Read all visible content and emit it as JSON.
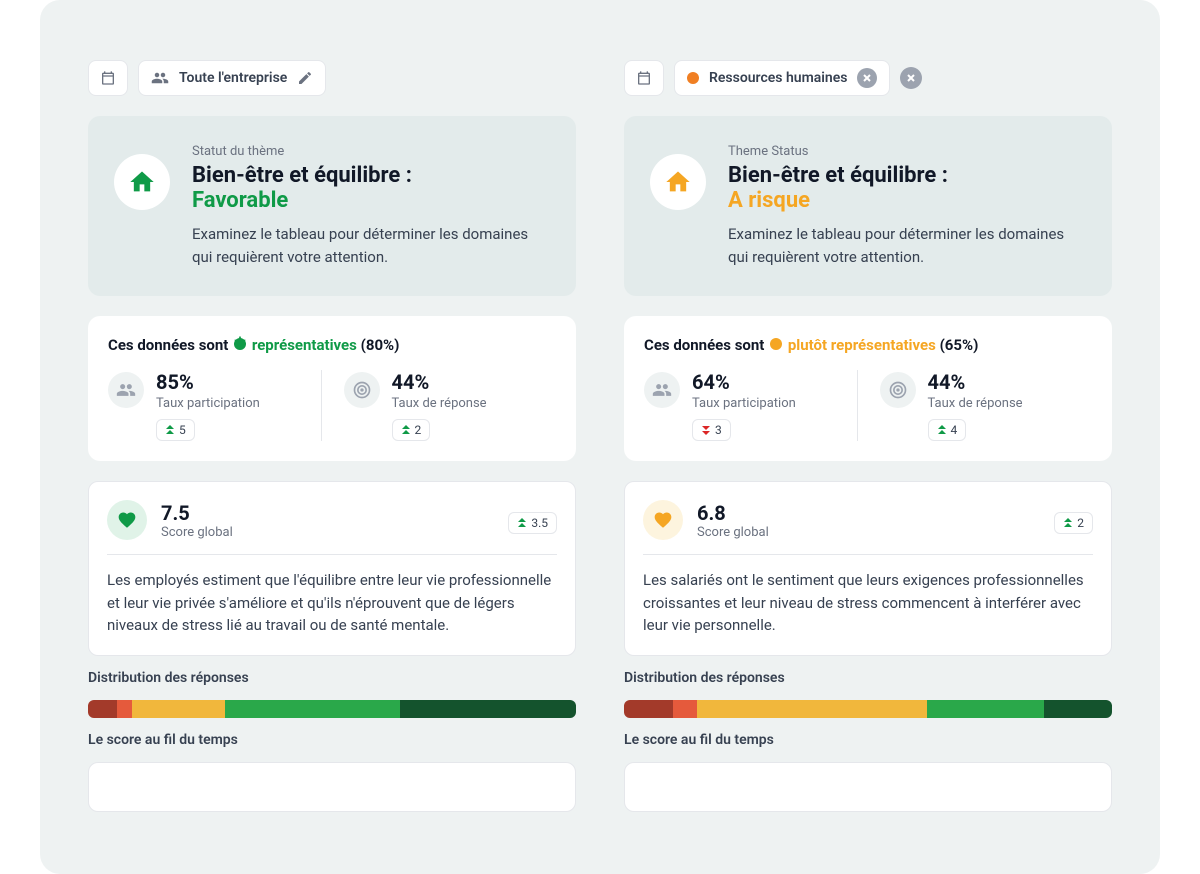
{
  "colors": {
    "green": "#0f9a47",
    "greenLight": "#e0f3e8",
    "amber": "#f5a623",
    "amberLight": "#fdf4de",
    "orange": "#f07f23",
    "gray": "#9ca3af",
    "deltaUp": "#0f9a47",
    "deltaDown": "#dc2626"
  },
  "distribPalette": {
    "darkRed": "#a33a2a",
    "red": "#e55a3c",
    "amber": "#f1b73c",
    "green": "#2aa84a",
    "darkGreen": "#14532d"
  },
  "left": {
    "filter": {
      "label": "Toute l'entreprise"
    },
    "status": {
      "overline": "Statut du thème",
      "title": "Bien-être et équilibre :",
      "value": "Favorable",
      "valueColor": "#0f9a47",
      "iconColor": "#0f9a47",
      "desc": "Examinez le tableau pour déterminer les domaines qui requièrent votre attention."
    },
    "rep": {
      "prefix": "Ces données sont ",
      "word": "représentatives",
      "pct": " (80%)",
      "color": "#0f9a47"
    },
    "metrics": {
      "participation": {
        "value": "85%",
        "label": "Taux participation",
        "delta": "5",
        "dir": "up"
      },
      "response": {
        "value": "44%",
        "label": "Taux de réponse",
        "delta": "2",
        "dir": "up"
      }
    },
    "score": {
      "value": "7.5",
      "label": "Score global",
      "delta": "3.5",
      "heartBg": "#e0f3e8",
      "heartColor": "#0f9a47",
      "body": "Les employés estiment que l'équilibre entre leur vie professionnelle et leur vie privée s'améliore et qu'ils n'éprouvent que de légers niveaux de stress lié au travail ou de santé mentale."
    },
    "distribLabel": "Distribution des réponses",
    "distrib": [
      {
        "color": "#a33a2a",
        "pct": 6
      },
      {
        "color": "#e55a3c",
        "pct": 3
      },
      {
        "color": "#f1b73c",
        "pct": 19
      },
      {
        "color": "#2aa84a",
        "pct": 36
      },
      {
        "color": "#14532d",
        "pct": 36
      }
    ],
    "timeLabel": "Le score au fil du temps"
  },
  "right": {
    "filter": {
      "label": "Ressources humaines",
      "dotColor": "#f07f23"
    },
    "status": {
      "overline": "Theme Status",
      "title": "Bien-être et équilibre :",
      "value": "A risque",
      "valueColor": "#f5a623",
      "iconColor": "#f5a623",
      "desc": "Examinez le tableau pour déterminer les domaines qui requièrent votre attention."
    },
    "rep": {
      "prefix": "Ces données sont ",
      "word": "plutôt représentatives",
      "pct": " (65%)",
      "color": "#f5a623"
    },
    "metrics": {
      "participation": {
        "value": "64%",
        "label": "Taux participation",
        "delta": "3",
        "dir": "down"
      },
      "response": {
        "value": "44%",
        "label": "Taux de réponse",
        "delta": "4",
        "dir": "up"
      }
    },
    "score": {
      "value": "6.8",
      "label": "Score global",
      "delta": "2",
      "heartBg": "#fdf4de",
      "heartColor": "#f5a623",
      "body": "Les salariés ont le sentiment que leurs exigences professionnelles croissantes et leur niveau de stress commencent à interférer avec leur vie personnelle."
    },
    "distribLabel": "Distribution des réponses",
    "distrib": [
      {
        "color": "#a33a2a",
        "pct": 10
      },
      {
        "color": "#e55a3c",
        "pct": 5
      },
      {
        "color": "#f1b73c",
        "pct": 47
      },
      {
        "color": "#2aa84a",
        "pct": 24
      },
      {
        "color": "#14532d",
        "pct": 14
      }
    ],
    "timeLabel": "Le score au fil du temps"
  }
}
